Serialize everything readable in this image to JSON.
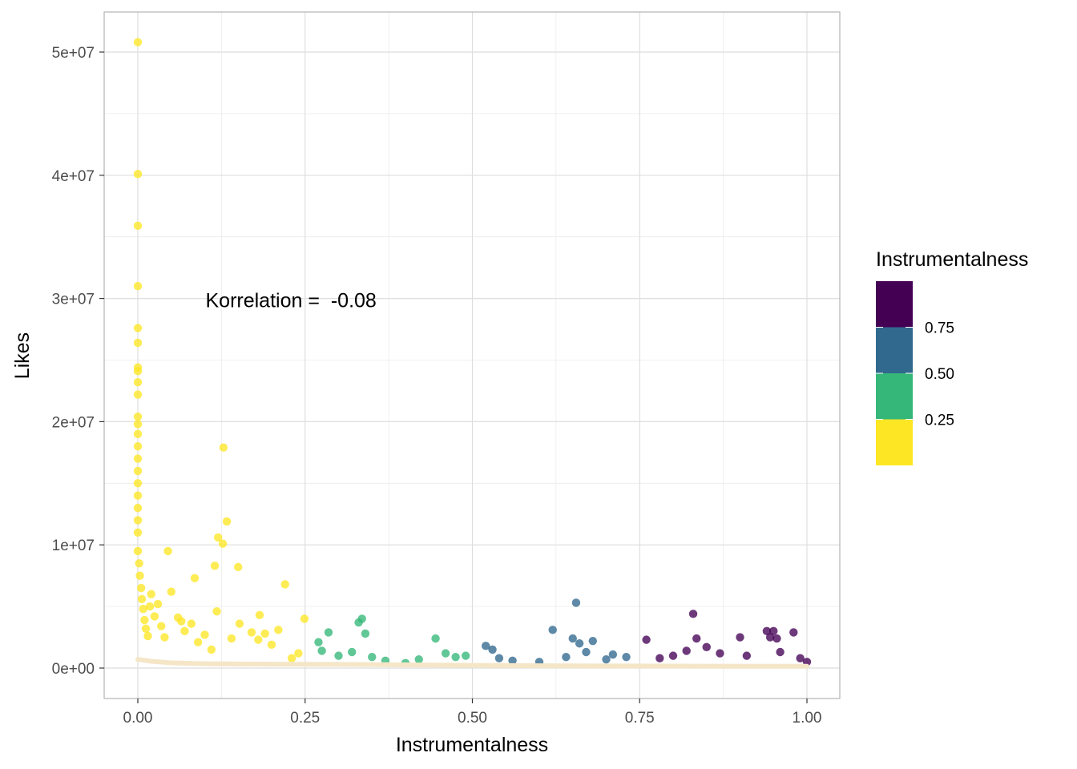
{
  "chart_data": {
    "type": "scatter",
    "title": "",
    "xlabel": "Instrumentalness",
    "ylabel": "Likes",
    "xlim": [
      -0.1,
      1.05
    ],
    "ylim": [
      -2500000,
      53500000
    ],
    "x_ticks": [
      {
        "value": 0,
        "label": "0.00"
      },
      {
        "value": 0.25,
        "label": "0.25"
      },
      {
        "value": 0.5,
        "label": "0.50"
      },
      {
        "value": 0.75,
        "label": "0.75"
      },
      {
        "value": 1,
        "label": "1.00"
      }
    ],
    "y_ticks": [
      {
        "value": 0,
        "label": "0e+00"
      },
      {
        "value": 10000000,
        "label": "1e+07"
      },
      {
        "value": 20000000,
        "label": "2e+07"
      },
      {
        "value": 30000000,
        "label": "3e+07"
      },
      {
        "value": 40000000,
        "label": "4e+07"
      },
      {
        "value": 50000000,
        "label": "5e+07"
      }
    ],
    "grid": true,
    "annotation": {
      "text": "Korrelation =  -0.08",
      "x": 0.1,
      "y": 30000000
    },
    "color_scale": {
      "title": "Instrumentalness",
      "placement": "right",
      "bins": [
        {
          "range": [
            0.75,
            1.0
          ],
          "color": "#440154"
        },
        {
          "range": [
            0.5,
            0.75
          ],
          "color": "#31688E"
        },
        {
          "range": [
            0.25,
            0.5
          ],
          "color": "#35B779"
        },
        {
          "range": [
            0.0,
            0.25
          ],
          "color": "#FDE725"
        }
      ],
      "labels": [
        "0.75",
        "0.50",
        "0.25"
      ]
    },
    "points": [
      [
        0.0,
        50800000
      ],
      [
        0.0,
        40100000
      ],
      [
        0.0,
        35900000
      ],
      [
        0.0,
        31000000
      ],
      [
        0.0,
        27600000
      ],
      [
        0.0,
        26400000
      ],
      [
        0.0,
        24400000
      ],
      [
        0.0,
        24100000
      ],
      [
        0.0,
        23200000
      ],
      [
        0.0,
        22200000
      ],
      [
        0.0,
        20400000
      ],
      [
        0.0,
        19800000
      ],
      [
        0.0,
        19000000
      ],
      [
        0.0,
        18000000
      ],
      [
        0.0,
        17000000
      ],
      [
        0.0,
        16000000
      ],
      [
        0.0,
        15000000
      ],
      [
        0.0,
        14000000
      ],
      [
        0.0,
        13000000
      ],
      [
        0.0,
        12000000
      ],
      [
        0.0,
        11000000
      ],
      [
        0.0,
        9500000
      ],
      [
        0.002,
        8500000
      ],
      [
        0.003,
        7500000
      ],
      [
        0.005,
        6500000
      ],
      [
        0.006,
        5600000
      ],
      [
        0.008,
        4800000
      ],
      [
        0.01,
        3900000
      ],
      [
        0.012,
        3200000
      ],
      [
        0.015,
        2600000
      ],
      [
        0.02,
        6000000
      ],
      [
        0.018,
        5000000
      ],
      [
        0.025,
        4200000
      ],
      [
        0.03,
        5200000
      ],
      [
        0.035,
        3400000
      ],
      [
        0.04,
        2500000
      ],
      [
        0.045,
        9500000
      ],
      [
        0.05,
        6200000
      ],
      [
        0.06,
        4100000
      ],
      [
        0.065,
        3800000
      ],
      [
        0.07,
        3000000
      ],
      [
        0.08,
        3600000
      ],
      [
        0.085,
        7300000
      ],
      [
        0.09,
        2100000
      ],
      [
        0.1,
        2700000
      ],
      [
        0.11,
        1500000
      ],
      [
        0.115,
        8300000
      ],
      [
        0.118,
        4600000
      ],
      [
        0.12,
        10600000
      ],
      [
        0.127,
        10100000
      ],
      [
        0.128,
        17900000
      ],
      [
        0.133,
        11900000
      ],
      [
        0.14,
        2400000
      ],
      [
        0.15,
        8200000
      ],
      [
        0.152,
        3600000
      ],
      [
        0.17,
        2900000
      ],
      [
        0.18,
        2300000
      ],
      [
        0.182,
        4300000
      ],
      [
        0.19,
        2800000
      ],
      [
        0.2,
        1900000
      ],
      [
        0.21,
        3100000
      ],
      [
        0.22,
        6800000
      ],
      [
        0.23,
        800000
      ],
      [
        0.24,
        1200000
      ],
      [
        0.249,
        4000000
      ],
      [
        0.27,
        2100000
      ],
      [
        0.275,
        1400000
      ],
      [
        0.285,
        2900000
      ],
      [
        0.3,
        1000000
      ],
      [
        0.32,
        1300000
      ],
      [
        0.33,
        3700000
      ],
      [
        0.335,
        4000000
      ],
      [
        0.34,
        2800000
      ],
      [
        0.35,
        900000
      ],
      [
        0.37,
        600000
      ],
      [
        0.4,
        400000
      ],
      [
        0.42,
        700000
      ],
      [
        0.445,
        2400000
      ],
      [
        0.46,
        1200000
      ],
      [
        0.475,
        900000
      ],
      [
        0.49,
        1000000
      ],
      [
        0.52,
        1800000
      ],
      [
        0.53,
        1500000
      ],
      [
        0.54,
        800000
      ],
      [
        0.56,
        600000
      ],
      [
        0.6,
        500000
      ],
      [
        0.62,
        3100000
      ],
      [
        0.64,
        900000
      ],
      [
        0.65,
        2400000
      ],
      [
        0.655,
        5300000
      ],
      [
        0.66,
        2000000
      ],
      [
        0.67,
        1300000
      ],
      [
        0.68,
        2200000
      ],
      [
        0.7,
        700000
      ],
      [
        0.71,
        1100000
      ],
      [
        0.73,
        900000
      ],
      [
        0.76,
        2300000
      ],
      [
        0.78,
        800000
      ],
      [
        0.8,
        1000000
      ],
      [
        0.82,
        1400000
      ],
      [
        0.83,
        4400000
      ],
      [
        0.835,
        2400000
      ],
      [
        0.85,
        1700000
      ],
      [
        0.87,
        1200000
      ],
      [
        0.9,
        2500000
      ],
      [
        0.91,
        1000000
      ],
      [
        0.94,
        3000000
      ],
      [
        0.945,
        2500000
      ],
      [
        0.95,
        3000000
      ],
      [
        0.955,
        2400000
      ],
      [
        0.96,
        1300000
      ],
      [
        0.98,
        2900000
      ],
      [
        0.99,
        800000
      ],
      [
        1.0,
        500000
      ]
    ],
    "trend_line": {
      "color": "#F5E6C8",
      "points": [
        [
          0.0,
          700000
        ],
        [
          0.02,
          550000
        ],
        [
          0.05,
          420000
        ],
        [
          0.1,
          350000
        ],
        [
          0.2,
          320000
        ],
        [
          0.3,
          300000
        ],
        [
          0.4,
          260000
        ],
        [
          0.5,
          220000
        ],
        [
          0.6,
          190000
        ],
        [
          0.7,
          170000
        ],
        [
          0.8,
          160000
        ],
        [
          0.9,
          150000
        ],
        [
          1.0,
          140000
        ]
      ]
    }
  }
}
